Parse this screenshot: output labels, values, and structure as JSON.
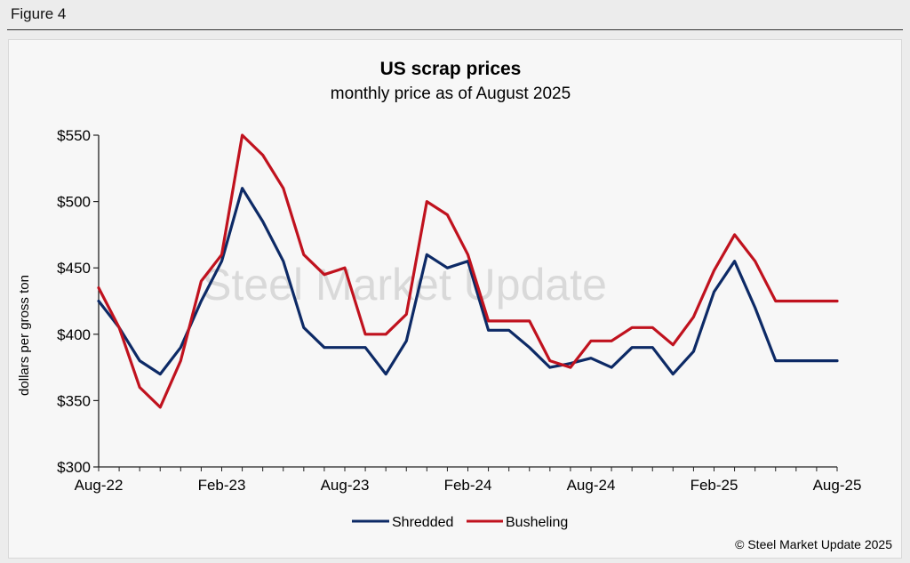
{
  "figure_label": "Figure 4",
  "copyright": "© Steel Market Update 2025",
  "watermark": "Steel Market Update",
  "colors": {
    "shredded": "#0d2a66",
    "busheling": "#c0121e",
    "axis": "#222222"
  },
  "chart_data": {
    "type": "line",
    "title": "US scrap prices",
    "subtitle": "monthly price as of August 2025",
    "xlabel": "",
    "ylabel": "dollars per  gross ton",
    "ylim": [
      300,
      550
    ],
    "yticks": [
      300,
      350,
      400,
      450,
      500,
      550
    ],
    "ytick_labels": [
      "$300",
      "$350",
      "$400",
      "$450",
      "$500",
      "$550"
    ],
    "x": [
      "Aug-22",
      "Sep-22",
      "Oct-22",
      "Nov-22",
      "Dec-22",
      "Jan-23",
      "Feb-23",
      "Mar-23",
      "Apr-23",
      "May-23",
      "Jun-23",
      "Jul-23",
      "Aug-23",
      "Sep-23",
      "Oct-23",
      "Nov-23",
      "Dec-23",
      "Jan-24",
      "Feb-24",
      "Mar-24",
      "Apr-24",
      "May-24",
      "Jun-24",
      "Jul-24",
      "Aug-24",
      "Sep-24",
      "Oct-24",
      "Nov-24",
      "Dec-24",
      "Jan-25",
      "Feb-25",
      "Mar-25",
      "Apr-25",
      "May-25",
      "Jun-25",
      "Jul-25",
      "Aug-25"
    ],
    "xtick_labels": [
      "Aug-22",
      "Feb-23",
      "Aug-23",
      "Feb-24",
      "Aug-24",
      "Feb-25",
      "Aug-25"
    ],
    "xtick_index": [
      0,
      6,
      12,
      18,
      24,
      30,
      36
    ],
    "grid": false,
    "legend_position": "bottom",
    "series": [
      {
        "name": "Shredded",
        "values": [
          425,
          405,
          380,
          370,
          390,
          425,
          455,
          510,
          485,
          455,
          405,
          390,
          390,
          390,
          370,
          395,
          460,
          450,
          455,
          403,
          403,
          390,
          375,
          378,
          382,
          375,
          390,
          390,
          370,
          387,
          432,
          455,
          420,
          380,
          380,
          380,
          380
        ]
      },
      {
        "name": "Busheling",
        "values": [
          435,
          405,
          360,
          345,
          380,
          440,
          460,
          550,
          535,
          510,
          460,
          445,
          450,
          400,
          400,
          415,
          500,
          490,
          460,
          410,
          410,
          410,
          380,
          375,
          395,
          395,
          405,
          405,
          392,
          413,
          448,
          475,
          455,
          425,
          425,
          425,
          425
        ]
      }
    ]
  }
}
